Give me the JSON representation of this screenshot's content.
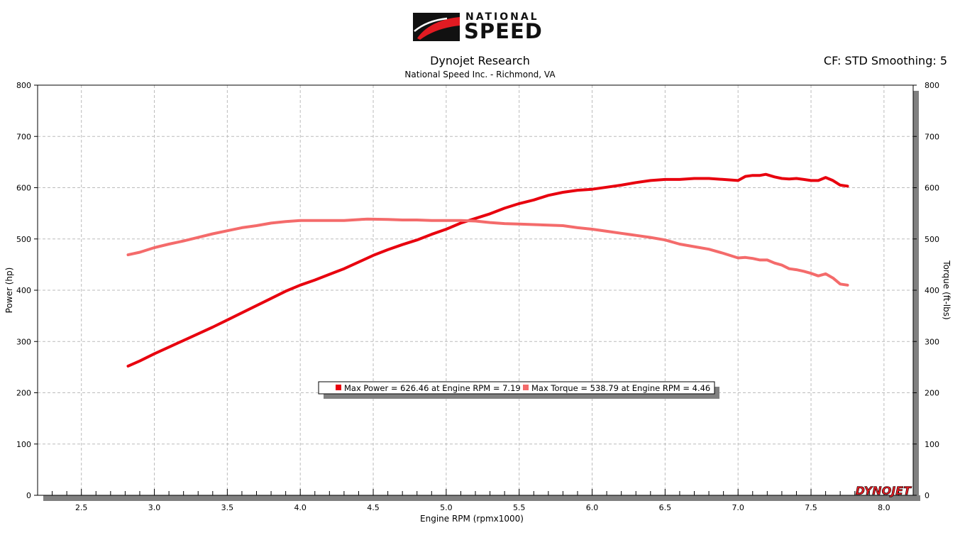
{
  "header": {
    "logo_top": "NATIONAL",
    "logo_main": "SPEED",
    "title": "Dynojet Research",
    "subtitle": "National Speed Inc. - Richmond, VA",
    "correction": "CF: STD Smoothing: 5",
    "brand_mark": "DYNOJET"
  },
  "legend": {
    "power": "Max Power = 626.46 at Engine RPM = 7.19",
    "torque": "Max Torque = 538.79 at Engine RPM = 4.46"
  },
  "colors": {
    "power": "#e8000e",
    "torque": "#f46b6b",
    "grid": "#bbbbbb",
    "axis_shadow": "#808080"
  },
  "chart_data": {
    "type": "line",
    "xlabel": "Engine RPM (rpmx1000)",
    "ylabel": "Power (hp)",
    "y2label": "Torque (ft-lbs)",
    "xlim": [
      2.2,
      8.2
    ],
    "ylim": [
      0,
      800
    ],
    "y2lim": [
      0,
      800
    ],
    "x_ticks": [
      2.5,
      3.0,
      3.5,
      4.0,
      4.5,
      5.0,
      5.5,
      6.0,
      6.5,
      7.0,
      7.5,
      8.0
    ],
    "y_ticks": [
      0,
      100,
      200,
      300,
      400,
      500,
      600,
      700,
      800
    ],
    "grid": true,
    "series": [
      {
        "name": "Max Power",
        "axis": "left",
        "x": [
          2.82,
          2.9,
          3.0,
          3.1,
          3.2,
          3.3,
          3.4,
          3.5,
          3.6,
          3.7,
          3.8,
          3.9,
          4.0,
          4.1,
          4.2,
          4.3,
          4.4,
          4.5,
          4.6,
          4.7,
          4.8,
          4.9,
          5.0,
          5.1,
          5.2,
          5.3,
          5.4,
          5.5,
          5.6,
          5.7,
          5.8,
          5.9,
          6.0,
          6.1,
          6.2,
          6.3,
          6.4,
          6.5,
          6.6,
          6.7,
          6.8,
          6.9,
          7.0,
          7.05,
          7.1,
          7.15,
          7.19,
          7.25,
          7.3,
          7.35,
          7.4,
          7.45,
          7.5,
          7.55,
          7.6,
          7.65,
          7.7,
          7.75
        ],
        "values": [
          252,
          262,
          276,
          289,
          302,
          315,
          328,
          342,
          356,
          370,
          384,
          398,
          410,
          420,
          431,
          442,
          455,
          468,
          479,
          489,
          498,
          509,
          519,
          531,
          540,
          549,
          560,
          569,
          576,
          585,
          591,
          595,
          597,
          601,
          605,
          610,
          614,
          616,
          616,
          618,
          618,
          616,
          614,
          622,
          624,
          624,
          626,
          621,
          618,
          617,
          618,
          616,
          614,
          614,
          620,
          614,
          605,
          603
        ]
      },
      {
        "name": "Max Torque",
        "axis": "right",
        "x": [
          2.82,
          2.9,
          3.0,
          3.1,
          3.2,
          3.3,
          3.4,
          3.5,
          3.6,
          3.7,
          3.8,
          3.9,
          4.0,
          4.1,
          4.2,
          4.3,
          4.46,
          4.6,
          4.7,
          4.8,
          4.9,
          5.0,
          5.1,
          5.2,
          5.3,
          5.4,
          5.5,
          5.6,
          5.7,
          5.8,
          5.9,
          6.0,
          6.1,
          6.2,
          6.3,
          6.4,
          6.5,
          6.6,
          6.7,
          6.8,
          6.9,
          7.0,
          7.05,
          7.1,
          7.15,
          7.2,
          7.25,
          7.3,
          7.35,
          7.4,
          7.45,
          7.5,
          7.55,
          7.6,
          7.65,
          7.7,
          7.75
        ],
        "values": [
          469,
          474,
          483,
          490,
          496,
          503,
          510,
          516,
          522,
          526,
          531,
          534,
          536,
          536,
          536,
          536,
          538.79,
          538,
          537,
          537,
          536,
          536,
          536,
          535,
          532,
          530,
          529,
          528,
          527,
          526,
          522,
          519,
          515,
          511,
          507,
          503,
          498,
          490,
          485,
          480,
          472,
          463,
          464,
          462,
          459,
          459,
          453,
          449,
          442,
          440,
          437,
          433,
          428,
          432,
          424,
          412,
          410
        ]
      }
    ]
  }
}
